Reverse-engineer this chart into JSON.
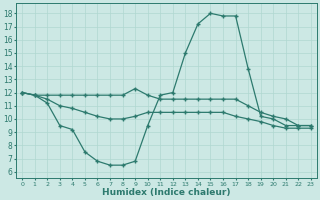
{
  "xlabel": "Humidex (Indice chaleur)",
  "bg_color": "#cce8e4",
  "line_color": "#2d7a6e",
  "grid_color": "#b0d8d0",
  "x_ticks": [
    0,
    1,
    2,
    3,
    4,
    5,
    6,
    7,
    8,
    9,
    10,
    11,
    12,
    13,
    14,
    15,
    16,
    17,
    18,
    19,
    20,
    21,
    22,
    23
  ],
  "y_ticks": [
    6,
    7,
    8,
    9,
    10,
    11,
    12,
    13,
    14,
    15,
    16,
    17,
    18
  ],
  "ylim": [
    5.5,
    18.8
  ],
  "xlim": [
    -0.5,
    23.5
  ],
  "curve1_x": [
    0,
    1,
    2,
    3,
    4,
    5,
    6,
    7,
    8,
    9,
    10,
    11,
    12,
    13,
    14,
    15,
    16,
    17,
    18,
    19,
    20,
    21,
    22,
    23
  ],
  "curve1_y": [
    12.0,
    11.8,
    11.8,
    11.8,
    11.8,
    11.8,
    11.8,
    11.8,
    11.8,
    12.3,
    11.8,
    11.5,
    11.5,
    11.5,
    11.5,
    11.5,
    11.5,
    11.5,
    11.0,
    10.5,
    10.2,
    10.0,
    9.5,
    9.5
  ],
  "curve2_x": [
    0,
    1,
    2,
    3,
    4,
    5,
    6,
    7,
    8,
    9,
    10,
    11,
    12,
    13,
    14,
    15,
    16,
    17,
    18,
    19,
    20,
    21,
    22,
    23
  ],
  "curve2_y": [
    12.0,
    11.8,
    11.5,
    11.0,
    10.8,
    10.5,
    10.2,
    10.0,
    10.0,
    10.2,
    10.5,
    10.5,
    10.5,
    10.5,
    10.5,
    10.5,
    10.5,
    10.2,
    10.0,
    9.8,
    9.5,
    9.3,
    9.3,
    9.3
  ],
  "curve3_x": [
    0,
    1,
    2,
    3,
    4,
    5,
    6,
    7,
    8,
    9,
    10,
    11,
    12,
    13,
    14,
    15,
    16,
    17,
    18,
    19,
    20,
    21,
    22,
    23
  ],
  "curve3_y": [
    12.0,
    11.8,
    11.2,
    9.5,
    9.2,
    7.5,
    6.8,
    6.5,
    6.5,
    6.8,
    9.5,
    11.8,
    12.0,
    15.0,
    17.2,
    18.0,
    17.8,
    17.8,
    13.8,
    10.2,
    10.0,
    9.5,
    9.5,
    9.5
  ]
}
